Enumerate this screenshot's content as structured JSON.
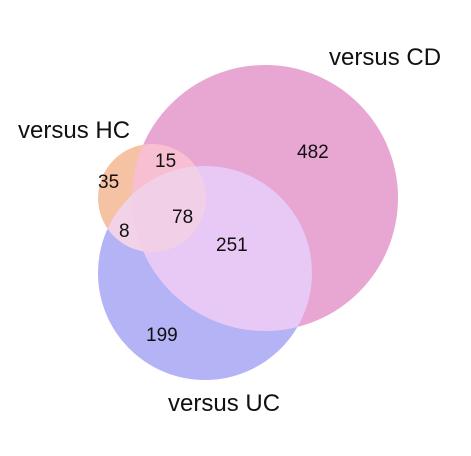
{
  "sets": [
    {
      "key": "cd",
      "label": "versus CD",
      "color": "#e8a6d2"
    },
    {
      "key": "uc",
      "label": "versus UC",
      "color": "#b3b3f5"
    },
    {
      "key": "hc",
      "label": "versus HC",
      "color": "#f5c2a3"
    }
  ],
  "overlap_colors": {
    "cd_uc": "#e8c8f5",
    "hc_cd": "#f8bfd2",
    "hc_uc": "#f2d2e6",
    "hc_cd_uc": "#f1cfe6"
  },
  "counts": {
    "cd_only": "482",
    "cd_uc": "251",
    "uc_only": "199",
    "hc_only": "35",
    "hc_cd": "15",
    "hc_cd_uc": "78",
    "hc_uc": "8"
  }
}
